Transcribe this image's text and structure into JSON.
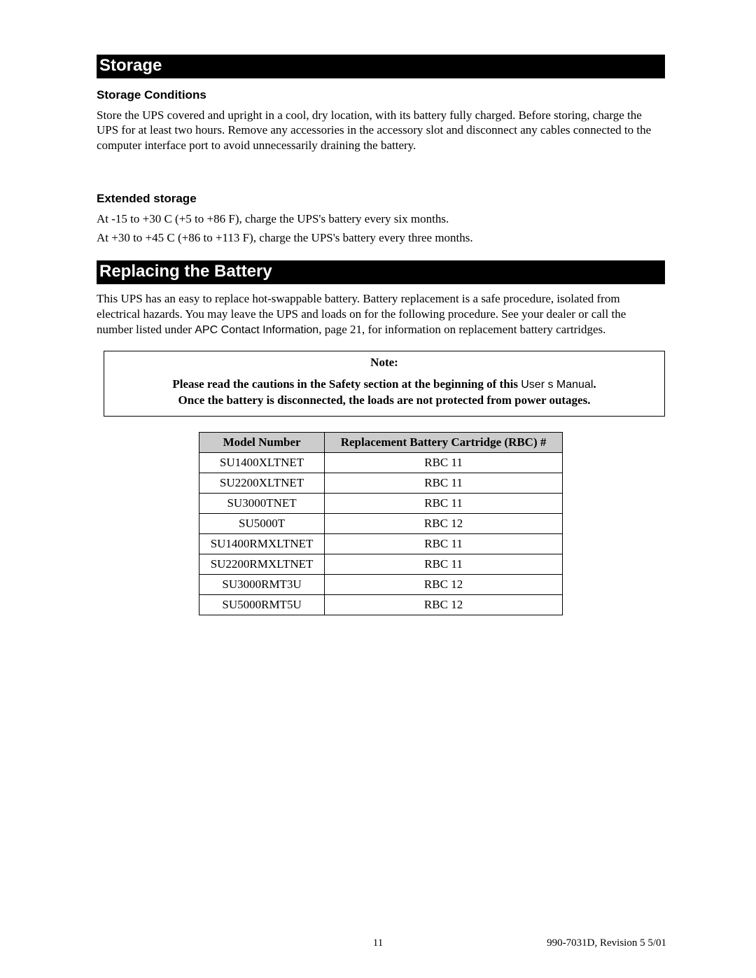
{
  "sections": {
    "storage": {
      "header": "Storage",
      "conditions_heading": "Storage Conditions",
      "conditions_text": "Store the UPS covered and upright in a cool, dry location, with its battery fully charged.  Before storing, charge the UPS for at least two hours.  Remove any accessories in the accessory slot and disconnect any cables connected to the computer interface port to avoid unnecessarily draining the battery.",
      "extended_heading": "Extended storage",
      "extended_line1": "At -15 to +30  C (+5 to +86  F), charge the UPS's battery every six months.",
      "extended_line2": "At +30 to +45  C (+86  to +113  F), charge the UPS's battery every three months."
    },
    "replacing": {
      "header": "Replacing the Battery",
      "intro_part1": "This UPS has an easy to replace hot-swappable battery. Battery replacement is a safe procedure, isolated from electrical hazards. You may leave the UPS and loads on for the following procedure. See your dealer or call the number listed under ",
      "intro_sans": "APC Contact Information",
      "intro_part2": ", page 21, for information on replacement battery cartridges.",
      "note_title": "Note:",
      "note_line1_bold": "Please read the cautions in the Safety section at the beginning of this ",
      "note_line1_sans": "User s Manual",
      "note_line1_period": ".",
      "note_line2": "Once the battery is disconnected, the loads are not protected from power outages."
    }
  },
  "rbc_table": {
    "columns": [
      "Model Number",
      "Replacement Battery Cartridge (RBC) #"
    ],
    "rows": [
      [
        "SU1400XLTNET",
        "RBC 11"
      ],
      [
        "SU2200XLTNET",
        "RBC 11"
      ],
      [
        "SU3000TNET",
        "RBC 11"
      ],
      [
        "SU5000T",
        "RBC 12"
      ],
      [
        "SU1400RMXLTNET",
        "RBC 11"
      ],
      [
        "SU2200RMXLTNET",
        "RBC 11"
      ],
      [
        "SU3000RMT3U",
        "RBC 12"
      ],
      [
        "SU5000RMT5U",
        "RBC 12"
      ]
    ],
    "header_bg": "#cccccc",
    "border_color": "#000000"
  },
  "footer": {
    "page_number": "11",
    "doc_id": "990-7031D, Revision 5 5/01"
  }
}
